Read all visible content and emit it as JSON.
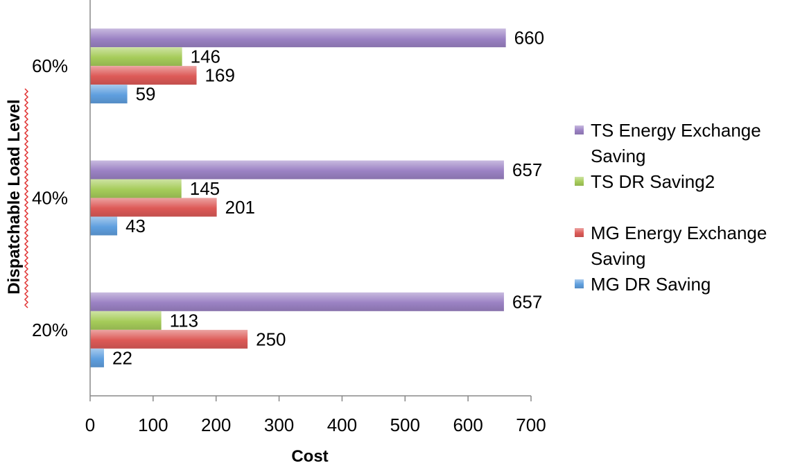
{
  "chart_data": {
    "type": "bar",
    "orientation": "horizontal",
    "title": "",
    "xlabel": "Cost",
    "ylabel": "Dispatchable Load Level",
    "xlim": [
      0,
      700
    ],
    "xticks": [
      "0",
      "100",
      "200",
      "300",
      "400",
      "500",
      "600",
      "700"
    ],
    "categories": [
      "60%",
      "40%",
      "20%"
    ],
    "grid": false,
    "legend_position": "right",
    "series": [
      {
        "name": "TS Energy Exchange Saving",
        "color": "#9b82c4",
        "values": [
          660,
          657,
          657
        ],
        "labels": [
          "660",
          "657",
          "657"
        ]
      },
      {
        "name": "TS DR Saving2",
        "color": "#a6cc5a",
        "values": [
          146,
          145,
          113
        ],
        "labels": [
          "146",
          "145",
          "113"
        ]
      },
      {
        "name": "MG Energy Exchange Saving",
        "color": "#dd5a57",
        "values": [
          169,
          201,
          250
        ],
        "labels": [
          "169",
          "201",
          "250"
        ]
      },
      {
        "name": "MG DR Saving",
        "color": "#5f9fdf",
        "values": [
          59,
          43,
          22
        ],
        "labels": [
          "59",
          "43",
          "22"
        ]
      }
    ]
  }
}
